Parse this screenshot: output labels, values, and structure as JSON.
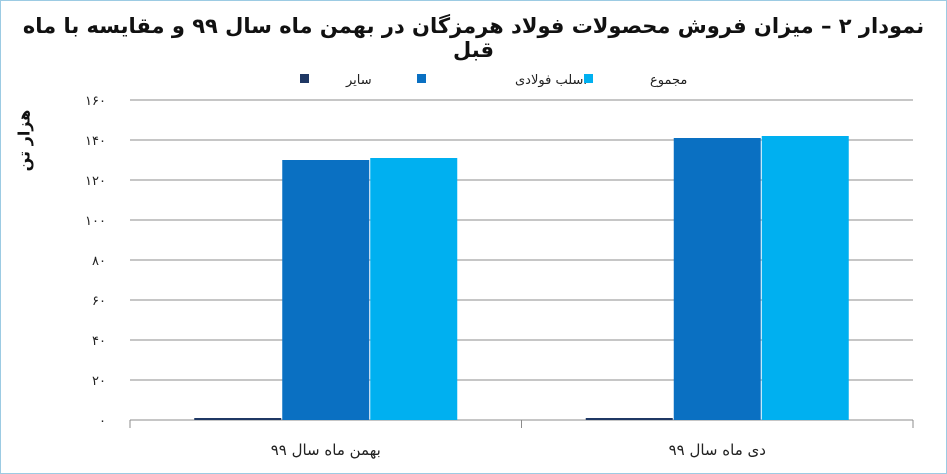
{
  "chart_data": {
    "type": "bar",
    "title": "نمودار ۲ – میزان فروش محصولات فولاد هرمزگان در بهمن ماه سال ۹۹ و مقایسه با ماه قبل",
    "ylabel": "هزار تن",
    "xlabel": "",
    "categories": [
      "بهمن ماه سال ۹۹",
      "دی ماه سال ۹۹"
    ],
    "series": [
      {
        "name": "سایر",
        "color": "#1f3864",
        "values": [
          0.5,
          1
        ]
      },
      {
        "name": "اسلب فولادی",
        "color": "#0a70c2",
        "values": [
          130,
          141
        ]
      },
      {
        "name": "مجموع",
        "color": "#00b0f0",
        "values": [
          131,
          142
        ]
      }
    ],
    "ylim": [
      0,
      160
    ],
    "yticks": [
      0,
      20,
      40,
      60,
      80,
      100,
      120,
      140,
      160
    ],
    "ytick_labels": [
      "۰",
      "۲۰",
      "۴۰",
      "۶۰",
      "۸۰",
      "۱۰۰",
      "۱۲۰",
      "۱۴۰",
      "۱۶۰"
    ],
    "grid": true,
    "legend_position": "top"
  }
}
